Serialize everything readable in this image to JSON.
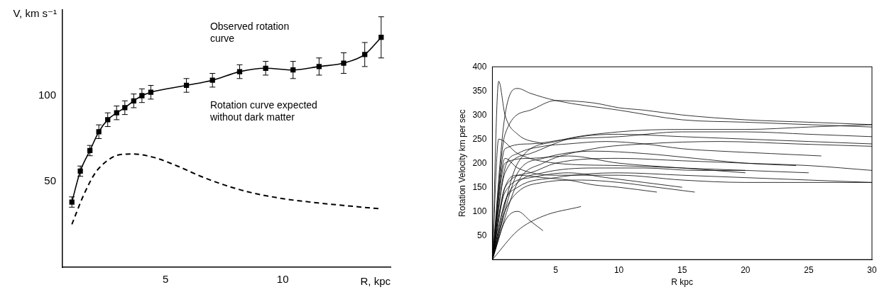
{
  "chart_data": [
    {
      "type": "line",
      "x_label": "R, kpc",
      "y_label": "V, km s⁻¹",
      "xlim": [
        0.6,
        14.6
      ],
      "ylim": [
        0,
        150
      ],
      "xticks": [
        5,
        10
      ],
      "yticks": [
        50,
        100
      ],
      "grid": false,
      "annotations": [
        "Observed rotation curve",
        "Rotation curve expected without dark matter"
      ],
      "series": [
        {
          "x": [
            1.0,
            1.36,
            1.77,
            2.15,
            2.53,
            2.91,
            3.26,
            3.64,
            3.99,
            4.37,
            5.89,
            7.0,
            8.16,
            9.27,
            10.44,
            11.55,
            12.6,
            13.5,
            14.2
          ],
          "values": [
            38,
            56,
            68,
            79,
            86,
            90,
            93,
            97,
            100,
            102,
            106,
            109,
            114,
            116,
            115,
            117,
            119,
            124,
            134
          ],
          "errors": [
            3,
            3,
            3,
            4,
            4,
            4,
            4,
            4,
            4,
            4,
            4,
            4,
            4,
            4,
            5,
            5,
            6,
            7,
            12
          ],
          "color": "#000000",
          "marker": "square",
          "line_style": "solid"
        },
        {
          "x": [
            1.0,
            1.5,
            2.0,
            2.5,
            3.0,
            3.6,
            4.5,
            5.5,
            6.5,
            7.5,
            8.5,
            10.0,
            11.5,
            13.0,
            14.2
          ],
          "values": [
            25,
            42,
            55,
            62,
            65.5,
            66,
            64,
            59,
            53,
            48,
            44,
            40,
            37.5,
            35.5,
            34
          ],
          "color": "#000000",
          "marker": "none",
          "line_style": "dashed"
        }
      ]
    },
    {
      "type": "line",
      "x_label": "R kpc",
      "y_label": "Rotation Velocity km per sec",
      "xlim": [
        0,
        30
      ],
      "ylim": [
        0,
        400
      ],
      "xticks": [
        5,
        10,
        15,
        20,
        25,
        30
      ],
      "yticks": [
        50,
        100,
        150,
        200,
        250,
        300,
        350,
        400
      ],
      "grid": false,
      "color": "#000000",
      "series": [
        {
          "x": [
            0,
            1,
            2,
            3,
            5,
            10,
            15,
            20,
            25,
            30
          ],
          "values": [
            0,
            300,
            355,
            345,
            330,
            310,
            290,
            285,
            280,
            275
          ]
        },
        {
          "x": [
            0,
            0.5,
            1,
            2,
            4
          ],
          "values": [
            0,
            370,
            300,
            260,
            240
          ]
        },
        {
          "x": [
            0,
            2,
            5,
            10,
            15,
            20,
            25,
            30
          ],
          "values": [
            0,
            200,
            245,
            265,
            270,
            270,
            275,
            280
          ]
        },
        {
          "x": [
            0,
            1,
            3,
            6,
            10,
            15,
            20,
            25,
            30
          ],
          "values": [
            0,
            180,
            220,
            250,
            260,
            255,
            250,
            245,
            240
          ]
        },
        {
          "x": [
            0,
            2,
            4,
            8,
            12,
            18,
            24,
            30
          ],
          "values": [
            0,
            160,
            200,
            230,
            240,
            245,
            240,
            235
          ]
        },
        {
          "x": [
            0,
            1,
            3,
            5,
            10,
            15,
            20,
            25,
            30
          ],
          "values": [
            0,
            150,
            180,
            200,
            210,
            205,
            200,
            195,
            185
          ]
        },
        {
          "x": [
            0,
            1,
            2,
            5,
            10,
            15,
            20,
            25,
            30
          ],
          "values": [
            0,
            120,
            150,
            170,
            180,
            175,
            170,
            165,
            160
          ]
        },
        {
          "x": [
            0,
            1,
            3,
            6,
            10,
            15,
            20
          ],
          "values": [
            0,
            200,
            210,
            215,
            200,
            190,
            180
          ]
        },
        {
          "x": [
            0,
            0.5,
            2,
            5,
            10,
            15,
            20,
            25
          ],
          "values": [
            0,
            250,
            220,
            200,
            195,
            190,
            185,
            180
          ]
        },
        {
          "x": [
            0,
            1,
            2,
            4,
            7,
            10,
            13,
            16
          ],
          "values": [
            0,
            100,
            140,
            160,
            165,
            160,
            150,
            140
          ]
        },
        {
          "x": [
            0,
            1,
            2,
            3,
            4
          ],
          "values": [
            0,
            80,
            100,
            80,
            60
          ]
        },
        {
          "x": [
            0,
            2,
            4,
            7
          ],
          "values": [
            0,
            60,
            90,
            110
          ]
        },
        {
          "x": [
            0,
            1,
            2,
            4,
            6,
            8,
            10,
            13
          ],
          "values": [
            0,
            150,
            175,
            170,
            165,
            155,
            150,
            140
          ]
        },
        {
          "x": [
            0,
            1,
            3,
            6,
            10,
            15,
            20,
            25,
            30
          ],
          "values": [
            0,
            230,
            240,
            250,
            255,
            265,
            265,
            260,
            255
          ]
        },
        {
          "x": [
            0,
            2,
            4,
            8,
            12,
            16,
            20,
            24
          ],
          "values": [
            0,
            180,
            210,
            225,
            220,
            210,
            200,
            195
          ]
        },
        {
          "x": [
            0,
            1,
            3,
            6,
            9,
            12,
            15
          ],
          "values": [
            0,
            140,
            170,
            180,
            170,
            160,
            150
          ]
        },
        {
          "x": [
            0,
            1,
            2,
            4,
            8,
            12,
            16,
            20
          ],
          "values": [
            0,
            120,
            160,
            180,
            190,
            190,
            185,
            185
          ]
        },
        {
          "x": [
            0,
            1,
            2,
            5,
            10,
            15,
            20,
            25,
            30
          ],
          "values": [
            0,
            210,
            190,
            175,
            175,
            165,
            160,
            160,
            160
          ]
        },
        {
          "x": [
            0,
            1,
            3,
            5,
            8,
            10,
            12,
            15,
            20,
            25,
            30
          ],
          "values": [
            0,
            260,
            310,
            330,
            325,
            315,
            310,
            300,
            290,
            285,
            280
          ]
        },
        {
          "x": [
            0,
            1,
            2,
            4,
            6,
            9,
            12,
            15,
            18,
            22,
            26
          ],
          "values": [
            0,
            190,
            220,
            235,
            240,
            245,
            240,
            230,
            225,
            220,
            215
          ]
        }
      ]
    }
  ]
}
